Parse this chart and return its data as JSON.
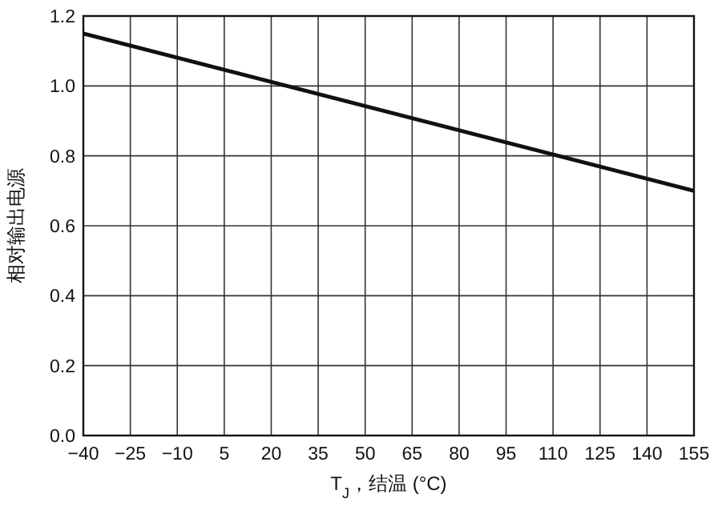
{
  "chart_data": {
    "type": "line",
    "xlabel": "T$_{J}$，结温 (°C)",
    "ylabel": "相对输出电源",
    "x": [
      -40,
      155
    ],
    "series": [
      {
        "color": "#111111",
        "values": [
          1.15,
          0.7
        ]
      }
    ],
    "xlim": [
      -40,
      155
    ],
    "xticks": [
      -40,
      -25,
      -10,
      5,
      20,
      35,
      50,
      65,
      80,
      95,
      110,
      125,
      140,
      155
    ],
    "ylim": [
      0,
      1.2
    ],
    "yticks": [
      {
        "value": 0,
        "label": "0.0"
      },
      {
        "value": 0.2,
        "label": "0.2"
      },
      {
        "value": 0.4,
        "label": "0.4"
      },
      {
        "value": 0.6,
        "label": "0.6"
      },
      {
        "value": 0.8,
        "label": "0.8"
      },
      {
        "value": 1.0,
        "label": "1.0"
      },
      {
        "value": 1.2,
        "label": "1.2"
      }
    ],
    "grid": true,
    "marker": "none",
    "line_style": "solid"
  }
}
